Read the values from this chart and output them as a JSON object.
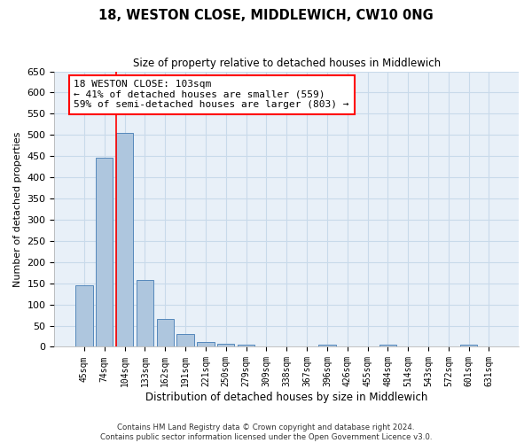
{
  "title": "18, WESTON CLOSE, MIDDLEWICH, CW10 0NG",
  "subtitle": "Size of property relative to detached houses in Middlewich",
  "xlabel": "Distribution of detached houses by size in Middlewich",
  "ylabel": "Number of detached properties",
  "categories": [
    "45sqm",
    "74sqm",
    "104sqm",
    "133sqm",
    "162sqm",
    "191sqm",
    "221sqm",
    "250sqm",
    "279sqm",
    "309sqm",
    "338sqm",
    "367sqm",
    "396sqm",
    "426sqm",
    "455sqm",
    "484sqm",
    "514sqm",
    "543sqm",
    "572sqm",
    "601sqm",
    "631sqm"
  ],
  "values": [
    145,
    447,
    505,
    157,
    65,
    30,
    12,
    7,
    5,
    0,
    0,
    0,
    5,
    0,
    0,
    5,
    0,
    0,
    0,
    5,
    0
  ],
  "bar_color": "#aec6de",
  "bar_edge_color": "#5588bb",
  "grid_color": "#c8daea",
  "background_color": "#e8f0f8",
  "red_line_x": 1.575,
  "annotation_text": "18 WESTON CLOSE: 103sqm\n← 41% of detached houses are smaller (559)\n59% of semi-detached houses are larger (803) →",
  "annotation_box_color": "white",
  "annotation_box_edge": "red",
  "ylim": [
    0,
    650
  ],
  "yticks": [
    0,
    50,
    100,
    150,
    200,
    250,
    300,
    350,
    400,
    450,
    500,
    550,
    600,
    650
  ],
  "footer_line1": "Contains HM Land Registry data © Crown copyright and database right 2024.",
  "footer_line2": "Contains public sector information licensed under the Open Government Licence v3.0."
}
